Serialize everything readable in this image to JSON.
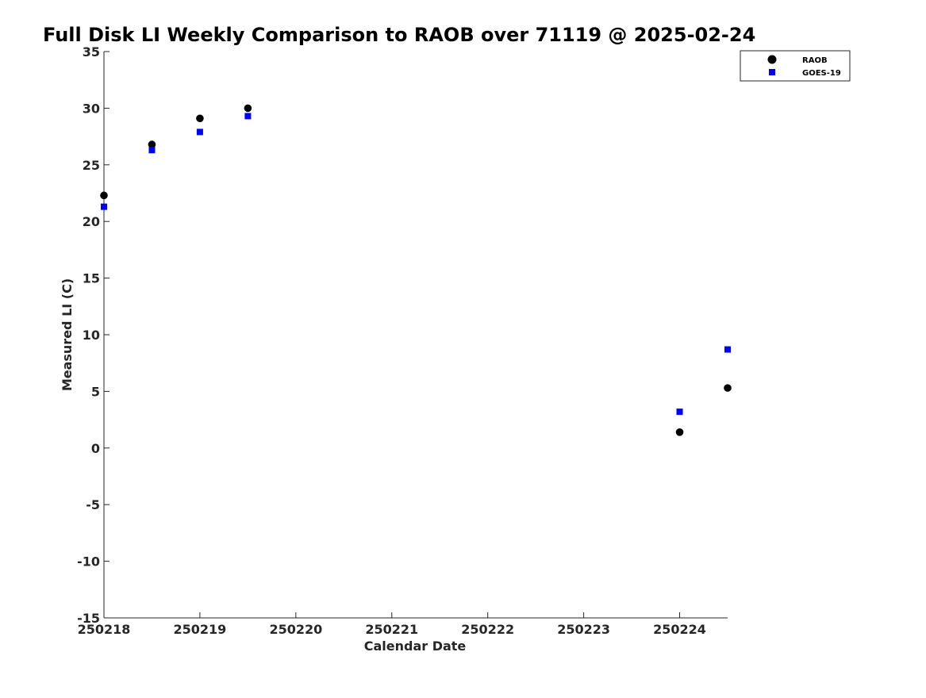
{
  "chart_data": {
    "type": "scatter",
    "title": "Full Disk LI Weekly Comparison to RAOB over 71119 @ 2025-02-24",
    "xlabel": "Calendar Date",
    "ylabel": "Measured LI (C)",
    "x_ticks": [
      "250218",
      "250219",
      "250220",
      "250221",
      "250222",
      "250223",
      "250224"
    ],
    "xlim": [
      "250218",
      "250224 12Z"
    ],
    "y_ticks": [
      35,
      30,
      25,
      20,
      15,
      10,
      5,
      0,
      -5,
      -10,
      -15
    ],
    "ylim": [
      -15,
      35
    ],
    "grid": false,
    "legend_position": "top-right",
    "series": [
      {
        "name": "RAOB",
        "marker": "circle",
        "color": "#000000",
        "points": [
          {
            "x": "250218 00Z",
            "y": 22.3
          },
          {
            "x": "250218 12Z",
            "y": 26.8
          },
          {
            "x": "250219 00Z",
            "y": 29.1
          },
          {
            "x": "250219 12Z",
            "y": 30.0
          },
          {
            "x": "250224 00Z",
            "y": 1.4
          },
          {
            "x": "250224 12Z",
            "y": 5.3
          }
        ]
      },
      {
        "name": "GOES-19",
        "marker": "square",
        "color": "#0000ff",
        "points": [
          {
            "x": "250218 00Z",
            "y": 21.3
          },
          {
            "x": "250218 12Z",
            "y": 26.3
          },
          {
            "x": "250219 00Z",
            "y": 27.9
          },
          {
            "x": "250219 12Z",
            "y": 29.3
          },
          {
            "x": "250224 00Z",
            "y": 3.2
          },
          {
            "x": "250224 12Z",
            "y": 8.7
          }
        ]
      }
    ]
  }
}
